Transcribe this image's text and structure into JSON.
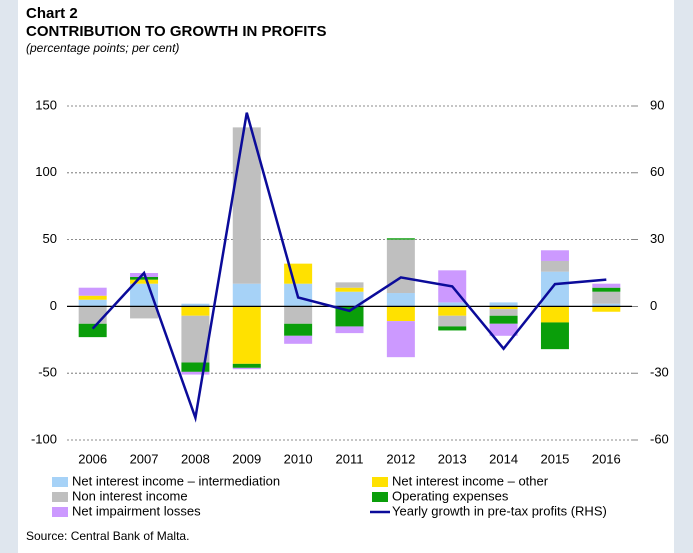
{
  "chart_data": {
    "type": "bar",
    "stacked": true,
    "title": "Chart 2",
    "subtitle": "CONTRIBUTION TO GROWTH IN PROFITS",
    "units": "(percentage points; per cent)",
    "source": "Source: Central Bank of Malta.",
    "categories": [
      "2006",
      "2007",
      "2008",
      "2009",
      "2010",
      "2011",
      "2012",
      "2013",
      "2014",
      "2015",
      "2016"
    ],
    "series": [
      {
        "name": "Net interest income – intermediation",
        "type": "bar",
        "color": "#a6d2f7",
        "values": [
          5,
          17,
          2,
          17,
          17,
          11,
          10,
          3,
          3,
          26,
          2
        ]
      },
      {
        "name": "Net interest income – other",
        "type": "bar",
        "color": "#ffe100",
        "values": [
          3,
          3,
          -7,
          -43,
          15,
          3,
          -11,
          -7,
          -2,
          -12,
          -4
        ]
      },
      {
        "name": "Non interest income",
        "type": "bar",
        "color": "#bfbfbf",
        "values": [
          -13,
          -9,
          -35,
          117,
          -13,
          4,
          40,
          -8,
          -5,
          8,
          9
        ]
      },
      {
        "name": "Operating expenses",
        "type": "bar",
        "color": "#0a9e0a",
        "values": [
          -10,
          2,
          -7,
          -3,
          -9,
          -15,
          1,
          -3,
          -6,
          -20,
          3
        ]
      },
      {
        "name": "Net impairment losses",
        "type": "bar",
        "color": "#cc99ff",
        "values": [
          6,
          3,
          -2,
          -1,
          -6,
          -5,
          -27,
          24,
          -9,
          8,
          3
        ]
      },
      {
        "name": "Yearly growth in pre-tax profits (RHS)",
        "type": "line",
        "axis": "y2",
        "color": "#0b0b9a",
        "values": [
          -10,
          15,
          -50,
          87,
          4,
          -2,
          13,
          9,
          -19,
          10,
          12
        ]
      }
    ],
    "ylim": [
      -100,
      150
    ],
    "yticks": [
      -100,
      -50,
      0,
      50,
      100,
      150
    ],
    "y2lim": [
      -60,
      90
    ],
    "y2ticks": [
      -60,
      -30,
      0,
      30,
      60,
      90
    ],
    "grid": true
  }
}
